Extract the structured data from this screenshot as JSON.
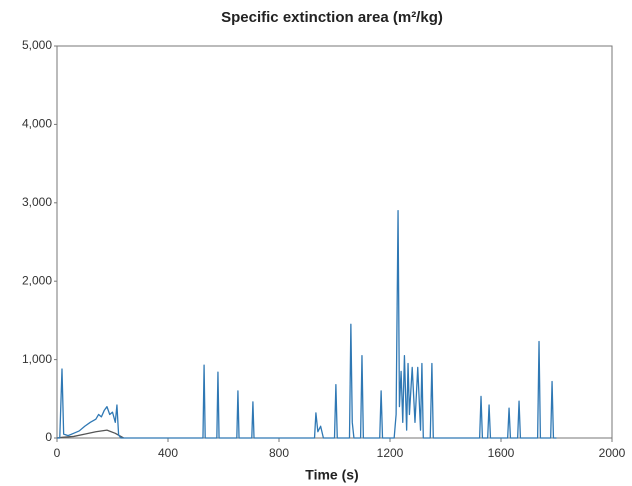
{
  "chart_data": {
    "type": "line",
    "title": "Specific extinction area (m²/kg)",
    "x_label": "Time (s)",
    "xlim": [
      0,
      2000
    ],
    "xticks": [
      0,
      400,
      800,
      1200,
      1600,
      2000
    ],
    "ylim": [
      0,
      5000
    ],
    "yticks": [
      0,
      {
        "value": 1000,
        "label": "1,000"
      },
      {
        "value": 2000,
        "label": "2,000"
      },
      {
        "value": 3000,
        "label": "3,000"
      },
      {
        "value": 4000,
        "label": "4,000"
      },
      {
        "value": 5000,
        "label": "5,000"
      }
    ],
    "series": [
      {
        "color": "#555555",
        "x": [
          0,
          20,
          60,
          100,
          140,
          180,
          210,
          240
        ],
        "values": [
          0,
          10,
          20,
          50,
          80,
          100,
          60,
          0
        ]
      },
      {
        "color": "#2f78b4",
        "x": [
          0,
          10,
          18,
          24,
          40,
          60,
          80,
          100,
          120,
          140,
          150,
          160,
          170,
          180,
          190,
          200,
          210,
          216,
          222,
          230,
          400,
          526,
          530,
          534,
          576,
          580,
          584,
          648,
          652,
          656,
          702,
          706,
          710,
          800,
          928,
          933,
          940,
          950,
          960,
          1000,
          1005,
          1010,
          1054,
          1059,
          1064,
          1070,
          1094,
          1099,
          1104,
          1163,
          1168,
          1173,
          1215,
          1222,
          1229,
          1234,
          1240,
          1246,
          1252,
          1260,
          1265,
          1270,
          1280,
          1290,
          1300,
          1310,
          1315,
          1320,
          1345,
          1351,
          1356,
          1400,
          1523,
          1528,
          1533,
          1552,
          1557,
          1562,
          1624,
          1629,
          1634,
          1660,
          1665,
          1670,
          1732,
          1737,
          1742,
          1779,
          1784,
          1789,
          1800
        ],
        "values": [
          0,
          0,
          880,
          50,
          30,
          60,
          90,
          150,
          200,
          240,
          300,
          270,
          350,
          400,
          300,
          330,
          200,
          420,
          40,
          0,
          0,
          0,
          930,
          0,
          0,
          840,
          0,
          0,
          600,
          0,
          0,
          460,
          0,
          0,
          0,
          320,
          80,
          150,
          0,
          0,
          680,
          0,
          0,
          1450,
          200,
          0,
          0,
          1050,
          0,
          0,
          600,
          0,
          0,
          300,
          2900,
          400,
          850,
          200,
          1050,
          100,
          950,
          300,
          900,
          200,
          900,
          100,
          950,
          0,
          0,
          950,
          0,
          0,
          0,
          530,
          0,
          0,
          420,
          0,
          0,
          380,
          0,
          0,
          470,
          0,
          0,
          1230,
          0,
          0,
          720,
          0,
          0
        ]
      }
    ]
  }
}
